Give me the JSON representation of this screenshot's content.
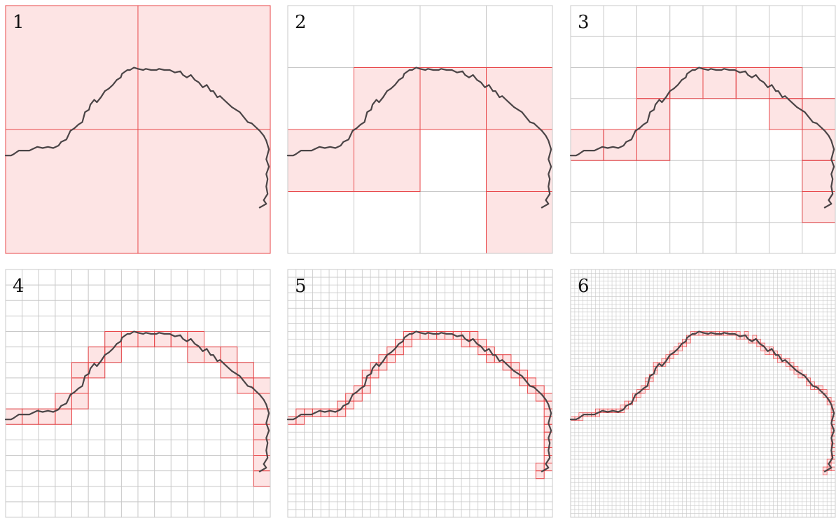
{
  "figure": {
    "panels": [
      {
        "label": "1",
        "divisions": 2
      },
      {
        "label": "2",
        "divisions": 4
      },
      {
        "label": "3",
        "divisions": 8
      },
      {
        "label": "4",
        "divisions": 16
      },
      {
        "label": "5",
        "divisions": 32
      },
      {
        "label": "6",
        "divisions": 64
      }
    ],
    "colors": {
      "grid": "#c8c8c8",
      "cell_fill": "#fde4e4",
      "cell_stroke": "#e8474a",
      "curve": "#4a4446"
    },
    "curve_points": [
      [
        0.0,
        0.605
      ],
      [
        0.02,
        0.605
      ],
      [
        0.03,
        0.6
      ],
      [
        0.05,
        0.585
      ],
      [
        0.07,
        0.585
      ],
      [
        0.09,
        0.585
      ],
      [
        0.1,
        0.58
      ],
      [
        0.12,
        0.57
      ],
      [
        0.14,
        0.575
      ],
      [
        0.16,
        0.57
      ],
      [
        0.18,
        0.575
      ],
      [
        0.2,
        0.565
      ],
      [
        0.21,
        0.55
      ],
      [
        0.23,
        0.54
      ],
      [
        0.245,
        0.505
      ],
      [
        0.26,
        0.495
      ],
      [
        0.275,
        0.48
      ],
      [
        0.29,
        0.47
      ],
      [
        0.3,
        0.43
      ],
      [
        0.315,
        0.42
      ],
      [
        0.32,
        0.4
      ],
      [
        0.335,
        0.38
      ],
      [
        0.345,
        0.39
      ],
      [
        0.36,
        0.37
      ],
      [
        0.375,
        0.345
      ],
      [
        0.39,
        0.335
      ],
      [
        0.405,
        0.32
      ],
      [
        0.42,
        0.3
      ],
      [
        0.435,
        0.29
      ],
      [
        0.44,
        0.275
      ],
      [
        0.46,
        0.26
      ],
      [
        0.47,
        0.26
      ],
      [
        0.485,
        0.25
      ],
      [
        0.5,
        0.255
      ],
      [
        0.52,
        0.26
      ],
      [
        0.53,
        0.255
      ],
      [
        0.55,
        0.26
      ],
      [
        0.57,
        0.26
      ],
      [
        0.58,
        0.255
      ],
      [
        0.6,
        0.26
      ],
      [
        0.62,
        0.26
      ],
      [
        0.64,
        0.27
      ],
      [
        0.66,
        0.265
      ],
      [
        0.67,
        0.28
      ],
      [
        0.685,
        0.29
      ],
      [
        0.7,
        0.28
      ],
      [
        0.715,
        0.3
      ],
      [
        0.73,
        0.31
      ],
      [
        0.745,
        0.33
      ],
      [
        0.76,
        0.32
      ],
      [
        0.775,
        0.345
      ],
      [
        0.785,
        0.345
      ],
      [
        0.8,
        0.37
      ],
      [
        0.81,
        0.365
      ],
      [
        0.825,
        0.38
      ],
      [
        0.84,
        0.395
      ],
      [
        0.855,
        0.41
      ],
      [
        0.87,
        0.42
      ],
      [
        0.885,
        0.43
      ],
      [
        0.9,
        0.45
      ],
      [
        0.915,
        0.47
      ],
      [
        0.93,
        0.475
      ],
      [
        0.945,
        0.49
      ],
      [
        0.96,
        0.505
      ],
      [
        0.975,
        0.525
      ],
      [
        0.985,
        0.545
      ],
      [
        0.995,
        0.58
      ],
      [
        0.985,
        0.62
      ],
      [
        0.995,
        0.65
      ],
      [
        0.985,
        0.68
      ],
      [
        0.99,
        0.7
      ],
      [
        0.985,
        0.73
      ],
      [
        0.99,
        0.76
      ],
      [
        0.975,
        0.785
      ],
      [
        0.985,
        0.8
      ],
      [
        0.96,
        0.815
      ]
    ]
  }
}
